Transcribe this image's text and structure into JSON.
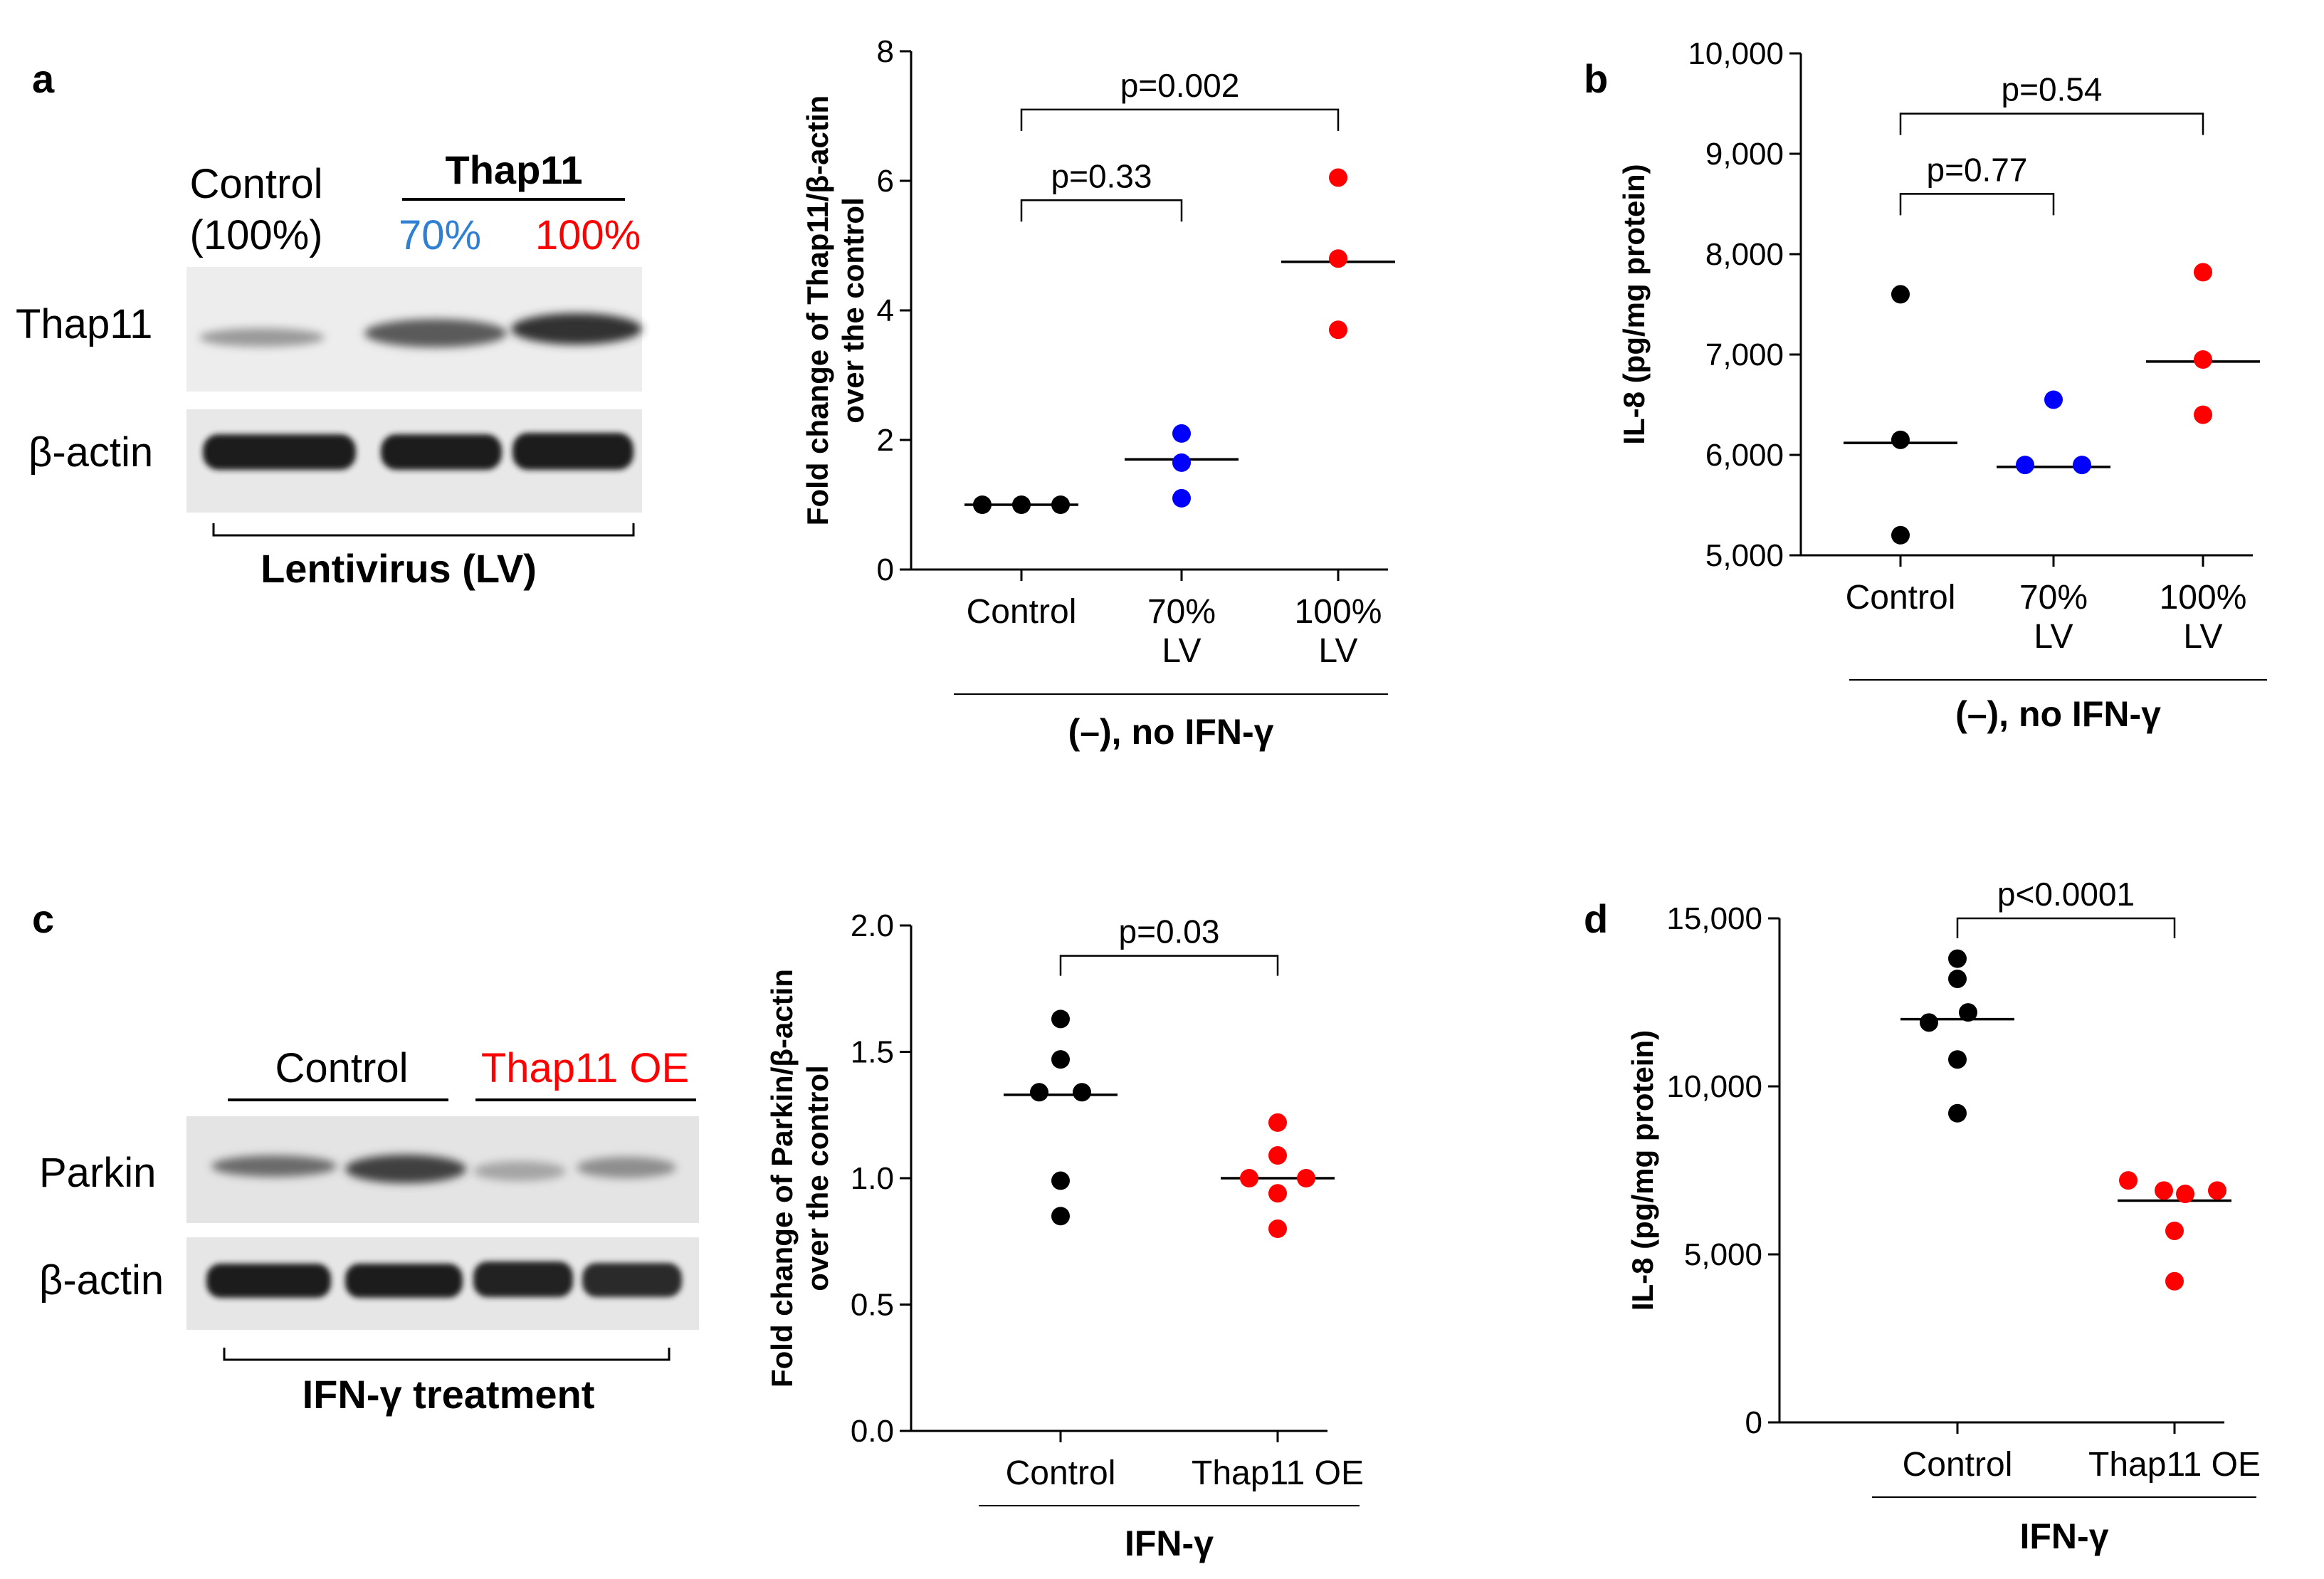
{
  "panels": {
    "a": {
      "label": "a",
      "blot": {
        "col_control": "Control",
        "col_control_pct": "(100%)",
        "group_label": "Thap11",
        "col_70": "70%",
        "col_100": "100%",
        "row1": "Thap11",
        "row2": "β-actin",
        "bottom_label": "Lentivirus (LV)"
      }
    },
    "b": {
      "label": "b"
    },
    "c": {
      "label": "c",
      "blot": {
        "col_control": "Control",
        "col_oe": "Thap11 OE",
        "row1": "Parkin",
        "row2": "β-actin",
        "bottom_label": "IFN-γ treatment"
      }
    },
    "d": {
      "label": "d"
    }
  },
  "colors": {
    "black": "#000000",
    "blue": "#0000ff",
    "red": "#ff0000",
    "blue_label": "#2f7fd3"
  },
  "chart_data": [
    {
      "id": "a-plot",
      "type": "scatter",
      "ylabel": [
        "Fold change of Thap11/β-actin",
        "over the control"
      ],
      "ylim": [
        0,
        8
      ],
      "yticks": [
        0,
        2,
        4,
        6,
        8
      ],
      "ytick_labels": [
        "0",
        "2",
        "4",
        "6",
        "8"
      ],
      "categories": [
        [
          "Control"
        ],
        [
          "70%",
          "LV"
        ],
        [
          "100%",
          "LV"
        ]
      ],
      "group_label": "(–), no IFN-γ",
      "series": [
        {
          "name": "Control",
          "color": "#000000",
          "values": [
            1.0,
            1.0,
            1.0
          ],
          "median": 1.0
        },
        {
          "name": "70% LV",
          "color": "#0000ff",
          "values": [
            2.1,
            1.65,
            1.1
          ],
          "median": 1.7
        },
        {
          "name": "100% LV",
          "color": "#ff0000",
          "values": [
            6.05,
            4.8,
            3.7
          ],
          "median": 4.75
        }
      ],
      "comparisons": [
        {
          "from": 0,
          "to": 1,
          "text": "p=0.33",
          "y": 5.7
        },
        {
          "from": 0,
          "to": 2,
          "text": "p=0.002",
          "y": 7.1
        }
      ]
    },
    {
      "id": "b-plot",
      "type": "scatter",
      "ylabel": [
        "IL-8 (pg/mg protein)"
      ],
      "ylim": [
        5000,
        10000
      ],
      "yticks": [
        5000,
        6000,
        7000,
        8000,
        9000,
        10000
      ],
      "ytick_labels": [
        "5,000",
        "6,000",
        "7,000",
        "8,000",
        "9,000",
        "10,000"
      ],
      "categories": [
        [
          "Control"
        ],
        [
          "70%",
          "LV"
        ],
        [
          "100%",
          "LV"
        ]
      ],
      "group_label": "(–), no IFN-γ",
      "series": [
        {
          "name": "Control",
          "color": "#000000",
          "values": [
            7600,
            6150,
            5200
          ],
          "median": 6120
        },
        {
          "name": "70% LV",
          "color": "#0000ff",
          "values": [
            6550,
            5900,
            5900
          ],
          "median": 5880
        },
        {
          "name": "100% LV",
          "color": "#ff0000",
          "values": [
            7820,
            6950,
            6400
          ],
          "median": 6930
        }
      ],
      "comparisons": [
        {
          "from": 0,
          "to": 1,
          "text": "p=0.77",
          "y": 8600
        },
        {
          "from": 0,
          "to": 2,
          "text": "p=0.54",
          "y": 9400
        }
      ]
    },
    {
      "id": "c-plot",
      "type": "scatter",
      "ylabel": [
        "Fold change of Parkin/β-actin",
        "over the control"
      ],
      "ylim": [
        0,
        2
      ],
      "yticks": [
        0,
        0.5,
        1.0,
        1.5,
        2.0
      ],
      "ytick_labels": [
        "0.0",
        "0.5",
        "1.0",
        "1.5",
        "2.0"
      ],
      "categories": [
        [
          "Control"
        ],
        [
          "Thap11 OE"
        ]
      ],
      "group_label": "IFN-γ",
      "series": [
        {
          "name": "Control",
          "color": "#000000",
          "values": [
            1.63,
            1.47,
            1.34,
            1.34,
            0.99,
            0.85
          ],
          "median": 1.33
        },
        {
          "name": "Thap11 OE",
          "color": "#ff0000",
          "values": [
            1.22,
            1.09,
            1.0,
            1.0,
            0.94,
            0.8
          ],
          "median": 1.0
        }
      ],
      "comparisons": [
        {
          "from": 0,
          "to": 1,
          "text": "p=0.03",
          "y": 1.88
        }
      ]
    },
    {
      "id": "d-plot",
      "type": "scatter",
      "ylabel": [
        "IL-8 (pg/mg protein)"
      ],
      "ylim": [
        0,
        15000
      ],
      "yticks": [
        0,
        5000,
        10000,
        15000
      ],
      "ytick_labels": [
        "0",
        "5,000",
        "10,000",
        "15,000"
      ],
      "categories": [
        [
          "Control"
        ],
        [
          "Thap11 OE"
        ]
      ],
      "group_label": "IFN-γ",
      "series": [
        {
          "name": "Control",
          "color": "#000000",
          "values": [
            13800,
            13200,
            12200,
            11900,
            10800,
            9200
          ],
          "median": 12000
        },
        {
          "name": "Thap11 OE",
          "color": "#ff0000",
          "values": [
            7200,
            6900,
            6900,
            6800,
            5700,
            4200
          ],
          "median": 6600
        }
      ],
      "comparisons": [
        {
          "from": 0,
          "to": 1,
          "text": "p<0.0001",
          "y": 15000
        }
      ]
    }
  ]
}
